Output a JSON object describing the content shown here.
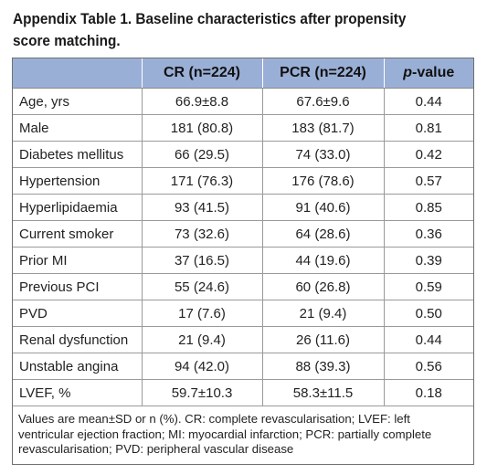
{
  "caption": "Appendix Table 1. Baseline characteristics after propensity score matching.",
  "table": {
    "headers": {
      "label": "",
      "cr": "CR (n=224)",
      "pcr": "PCR (n=224)",
      "p_prefix": "p",
      "p_suffix": "-value"
    },
    "rows": [
      {
        "label": "Age, yrs",
        "cr": "66.9±8.8",
        "pcr": "67.6±9.6",
        "p": "0.44"
      },
      {
        "label": "Male",
        "cr": "181 (80.8)",
        "pcr": "183 (81.7)",
        "p": "0.81"
      },
      {
        "label": "Diabetes mellitus",
        "cr": "66 (29.5)",
        "pcr": "74 (33.0)",
        "p": "0.42"
      },
      {
        "label": "Hypertension",
        "cr": "171 (76.3)",
        "pcr": "176 (78.6)",
        "p": "0.57"
      },
      {
        "label": "Hyperlipidaemia",
        "cr": "93 (41.5)",
        "pcr": "91 (40.6)",
        "p": "0.85"
      },
      {
        "label": "Current smoker",
        "cr": "73 (32.6)",
        "pcr": "64 (28.6)",
        "p": "0.36"
      },
      {
        "label": "Prior MI",
        "cr": "37 (16.5)",
        "pcr": "44 (19.6)",
        "p": "0.39"
      },
      {
        "label": "Previous PCI",
        "cr": "55 (24.6)",
        "pcr": "60 (26.8)",
        "p": "0.59"
      },
      {
        "label": "PVD",
        "cr": "17 (7.6)",
        "pcr": "21 (9.4)",
        "p": "0.50"
      },
      {
        "label": "Renal dysfunction",
        "cr": "21 (9.4)",
        "pcr": "26 (11.6)",
        "p": "0.44"
      },
      {
        "label": "Unstable angina",
        "cr": "94 (42.0)",
        "pcr": "88 (39.3)",
        "p": "0.56"
      },
      {
        "label": "LVEF, %",
        "cr": "59.7±10.3",
        "pcr": "58.3±11.5",
        "p": "0.18"
      }
    ],
    "footnote": "Values are mean±SD or n (%). CR: complete revascularisation; LVEF: left ventricular ejection fraction; MI: myocardial infarction; PCR: partially complete revascularisation; PVD: peripheral vascular disease"
  },
  "colors": {
    "header_bg": "#9aafd6",
    "border": "#9a9a9a"
  }
}
